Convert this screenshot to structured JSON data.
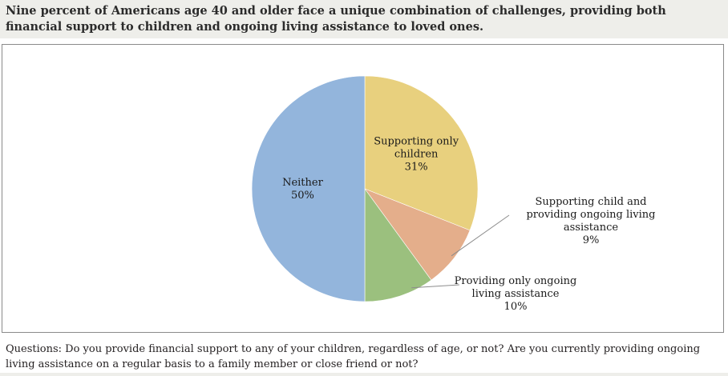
{
  "title": "Nine percent of Americans age 40 and older face a unique combination of challenges, providing both financial support to children and ongoing living assistance to loved ones.",
  "footnote": "Questions: Do you provide financial support to any of your children, regardless of age, or not? Are you currently providing ongoing living assistance on a regular basis to a family member or close friend or not?",
  "chart_data": {
    "type": "pie",
    "start": "12 o'clock",
    "direction": "clockwise",
    "slices": [
      {
        "label_lines": [
          "Supporting only",
          "children"
        ],
        "value": 31,
        "value_label": "31%",
        "color": "#e8d07e",
        "label_placement": "inside"
      },
      {
        "label_lines": [
          "Supporting child and",
          "providing ongoing living",
          "assistance"
        ],
        "value": 9,
        "value_label": "9%",
        "color": "#e4ae8b",
        "label_placement": "outside-leader"
      },
      {
        "label_lines": [
          "Providing only ongoing",
          "living assistance"
        ],
        "value": 10,
        "value_label": "10%",
        "color": "#9bc07e",
        "label_placement": "outside-leader"
      },
      {
        "label_lines": [
          "Neither"
        ],
        "value": 50,
        "value_label": "50%",
        "color": "#93b5dc",
        "label_placement": "inside"
      }
    ]
  }
}
